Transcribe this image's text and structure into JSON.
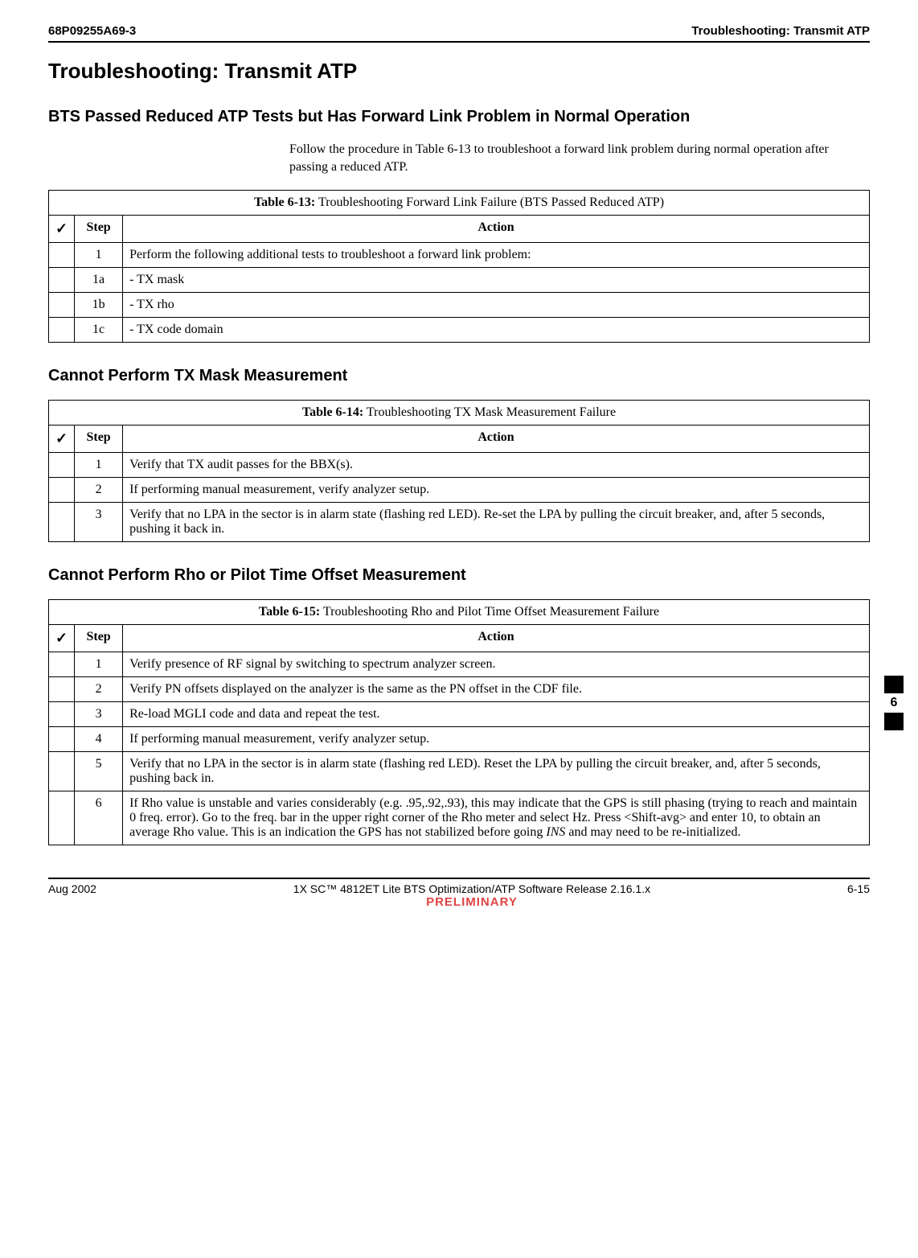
{
  "header": {
    "doc_id": "68P09255A69-3",
    "section_title": "Troubleshooting: Transmit ATP"
  },
  "page_title": "Troubleshooting: Transmit ATP",
  "section1": {
    "heading": "BTS Passed Reduced ATP Tests but Has Forward Link Problem in Normal Operation",
    "intro": "Follow the procedure in Table 6-13 to troubleshoot a forward link problem during normal operation after passing a reduced ATP.",
    "table": {
      "caption_label": "Table 6-13:",
      "caption_text": " Troubleshooting Forward Link Failure (BTS Passed Reduced ATP)",
      "check_symbol": "✓",
      "step_label": "Step",
      "action_label": "Action",
      "rows": [
        {
          "step": "1",
          "action": "Perform the following additional tests to troubleshoot a forward link problem:"
        },
        {
          "step": "1a",
          "action": "-   TX mask",
          "indent": true
        },
        {
          "step": "1b",
          "action": "-   TX rho",
          "indent": true
        },
        {
          "step": "1c",
          "action": "-   TX code domain",
          "indent": true
        }
      ]
    }
  },
  "section2": {
    "heading": "Cannot Perform TX Mask Measurement",
    "table": {
      "caption_label": "Table 6-14:",
      "caption_text": " Troubleshooting TX Mask Measurement Failure",
      "check_symbol": "✓",
      "step_label": "Step",
      "action_label": "Action",
      "rows": [
        {
          "step": "1",
          "action": "Verify that TX audit passes for the BBX(s)."
        },
        {
          "step": "2",
          "action": "If performing manual measurement, verify analyzer setup."
        },
        {
          "step": "3",
          "action": "Verify that no LPA in the sector is in alarm state (flashing red LED). Re-set the LPA by pulling the circuit breaker, and, after 5 seconds, pushing it back in."
        }
      ]
    }
  },
  "section3": {
    "heading": "Cannot Perform Rho or Pilot Time Offset Measurement",
    "table": {
      "caption_label": "Table 6-15:",
      "caption_text": " Troubleshooting Rho and Pilot Time Offset Measurement Failure",
      "check_symbol": "✓",
      "step_label": "Step",
      "action_label": "Action",
      "rows": [
        {
          "step": "1",
          "action": "Verify presence of RF signal by switching to spectrum analyzer screen."
        },
        {
          "step": "2",
          "action": "Verify PN offsets displayed on the analyzer is the same as the PN offset in the CDF file."
        },
        {
          "step": "3",
          "action": "Re-load MGLI code and data and repeat the test."
        },
        {
          "step": "4",
          "action": "If performing manual measurement, verify analyzer setup."
        },
        {
          "step": "5",
          "action": "Verify that no LPA in the sector is in alarm state (flashing red LED). Reset the LPA by pulling the circuit breaker, and, after 5 seconds, pushing back in."
        },
        {
          "step": "6",
          "action_html": "If Rho value is unstable and varies considerably (e.g. .95,.92,.93), this may indicate that the GPS is still phasing (trying to reach and maintain 0 freq. error). Go to the freq. bar in the upper right corner of the Rho meter and select Hz. Press &lt;Shift-avg&gt; and enter 10, to obtain an average Rho value. This is an indication the GPS has not stabilized before going <span class=\"italic\">INS</span> and may need to be re-initialized."
        }
      ]
    }
  },
  "side_tab": {
    "chapter": "6"
  },
  "footer": {
    "date": "Aug 2002",
    "title": "1X SC™ 4812ET Lite BTS Optimization/ATP Software Release 2.16.1.x",
    "preliminary": "PRELIMINARY",
    "page_num": "6-15"
  },
  "colors": {
    "text": "#000000",
    "background": "#ffffff",
    "rule": "#000000",
    "preliminary": "#d44"
  }
}
